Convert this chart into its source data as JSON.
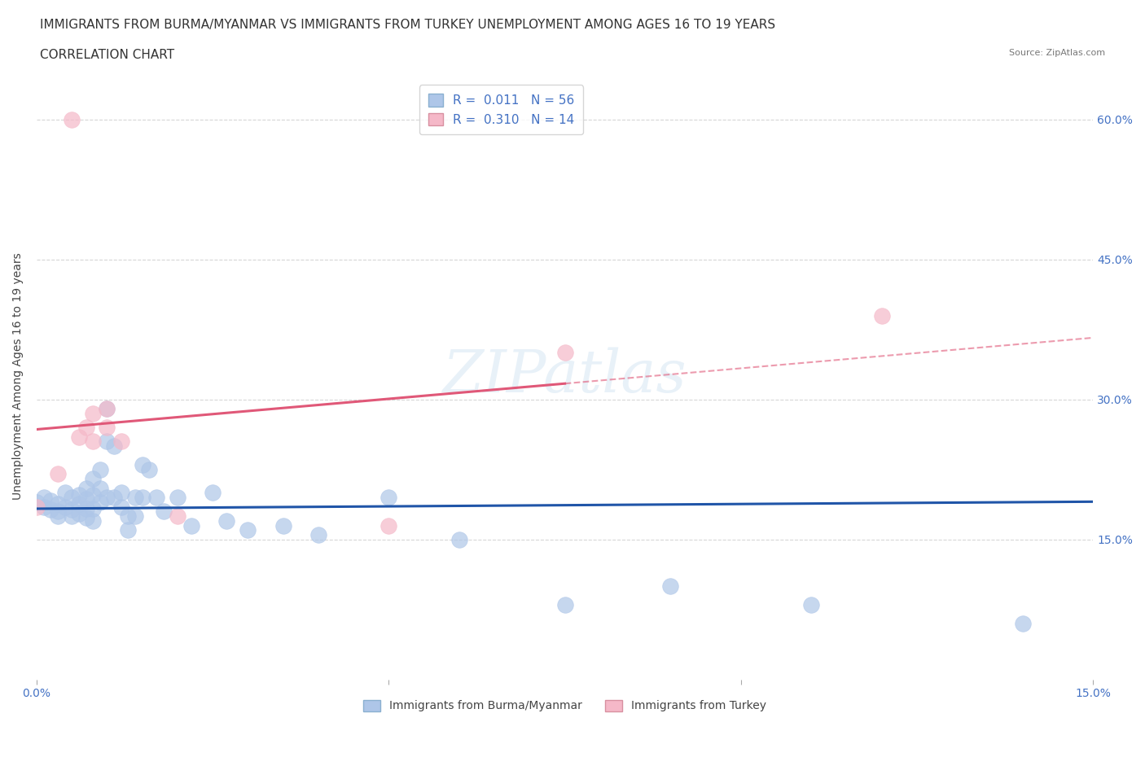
{
  "title_line1": "IMMIGRANTS FROM BURMA/MYANMAR VS IMMIGRANTS FROM TURKEY UNEMPLOYMENT AMONG AGES 16 TO 19 YEARS",
  "title_line2": "CORRELATION CHART",
  "source_text": "Source: ZipAtlas.com",
  "ylabel": "Unemployment Among Ages 16 to 19 years",
  "xmin": 0.0,
  "xmax": 0.15,
  "ymin": 0.0,
  "ymax": 0.65,
  "color_burma": "#aec6e8",
  "color_turkey": "#f5b8c8",
  "trend_burma_color": "#2055a8",
  "trend_turkey_color": "#e05878",
  "R_burma": 0.011,
  "N_burma": 56,
  "R_turkey": 0.31,
  "N_turkey": 14,
  "burma_x": [
    0.0,
    0.001,
    0.001,
    0.002,
    0.002,
    0.003,
    0.003,
    0.003,
    0.004,
    0.004,
    0.005,
    0.005,
    0.005,
    0.006,
    0.006,
    0.006,
    0.007,
    0.007,
    0.007,
    0.007,
    0.008,
    0.008,
    0.008,
    0.008,
    0.009,
    0.009,
    0.009,
    0.01,
    0.01,
    0.01,
    0.011,
    0.011,
    0.012,
    0.012,
    0.013,
    0.013,
    0.014,
    0.014,
    0.015,
    0.015,
    0.016,
    0.017,
    0.018,
    0.02,
    0.022,
    0.025,
    0.027,
    0.03,
    0.035,
    0.04,
    0.05,
    0.06,
    0.075,
    0.09,
    0.11,
    0.14
  ],
  "burma_y": [
    0.19,
    0.195,
    0.185,
    0.192,
    0.182,
    0.188,
    0.18,
    0.175,
    0.2,
    0.185,
    0.195,
    0.182,
    0.175,
    0.198,
    0.188,
    0.178,
    0.205,
    0.193,
    0.183,
    0.173,
    0.215,
    0.198,
    0.183,
    0.17,
    0.225,
    0.205,
    0.19,
    0.29,
    0.255,
    0.195,
    0.25,
    0.195,
    0.2,
    0.185,
    0.175,
    0.16,
    0.195,
    0.175,
    0.23,
    0.195,
    0.225,
    0.195,
    0.18,
    0.195,
    0.165,
    0.2,
    0.17,
    0.16,
    0.165,
    0.155,
    0.195,
    0.15,
    0.08,
    0.1,
    0.08,
    0.06
  ],
  "turkey_x": [
    0.0,
    0.003,
    0.005,
    0.006,
    0.007,
    0.008,
    0.008,
    0.01,
    0.01,
    0.012,
    0.02,
    0.05,
    0.075,
    0.12
  ],
  "turkey_y": [
    0.185,
    0.22,
    0.6,
    0.26,
    0.27,
    0.285,
    0.255,
    0.29,
    0.27,
    0.255,
    0.175,
    0.165,
    0.35,
    0.39
  ],
  "background_color": "#ffffff",
  "grid_color": "#cccccc",
  "axis_color": "#4472c4",
  "title_fontsize": 11,
  "label_fontsize": 10,
  "tick_fontsize": 10,
  "legend_fontsize": 11
}
